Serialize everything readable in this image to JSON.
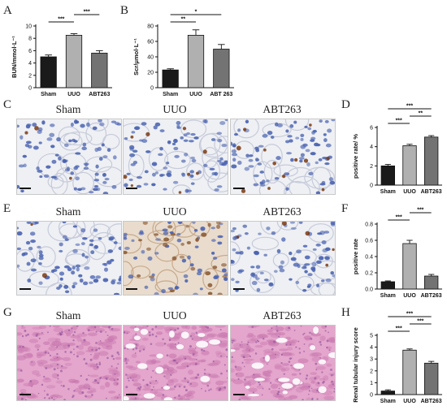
{
  "panels": {
    "A": {
      "label": "A"
    },
    "B": {
      "label": "B"
    },
    "C": {
      "label": "C",
      "titles": [
        "Sham",
        "UUO",
        "ABT263"
      ]
    },
    "D": {
      "label": "D"
    },
    "E": {
      "label": "E",
      "titles": [
        "Sham",
        "UUO",
        "ABT263"
      ]
    },
    "F": {
      "label": "F"
    },
    "G": {
      "label": "G",
      "titles": [
        "Sham",
        "UUO",
        "ABT263"
      ]
    },
    "H": {
      "label": "H"
    }
  },
  "chart_data": [
    {
      "id": "A",
      "type": "bar",
      "categories": [
        "Sham",
        "UUO",
        "ABT263"
      ],
      "values": [
        5.0,
        8.5,
        5.6
      ],
      "errors": [
        0.3,
        0.25,
        0.4
      ],
      "ylabel": "BUN/mmol·L⁻¹",
      "ylim": [
        0,
        10
      ],
      "yticks": [
        "0",
        "2",
        "4",
        "6",
        "8",
        "10"
      ],
      "bar_colors": [
        "#1a1a1a",
        "#b0b0b0",
        "#737373"
      ],
      "significance": [
        {
          "from": 0,
          "to": 1,
          "label": "***"
        },
        {
          "from": 1,
          "to": 2,
          "label": "***"
        }
      ]
    },
    {
      "id": "B",
      "type": "bar",
      "categories": [
        "Sham",
        "UUO",
        "ABT 263"
      ],
      "values": [
        23,
        68,
        50
      ],
      "errors": [
        1.5,
        7,
        6
      ],
      "ylabel": "Scr/μmol·L⁻¹",
      "ylim": [
        0,
        80
      ],
      "yticks": [
        "0",
        "20",
        "40",
        "60",
        "80"
      ],
      "bar_colors": [
        "#1a1a1a",
        "#b0b0b0",
        "#737373"
      ],
      "significance": [
        {
          "from": 0,
          "to": 1,
          "label": "**"
        },
        {
          "from": 0,
          "to": 2,
          "label": "*"
        }
      ]
    },
    {
      "id": "D",
      "type": "bar",
      "categories": [
        "Sham",
        "UUO",
        "ABT263"
      ],
      "values": [
        2.0,
        4.1,
        5.0
      ],
      "errors": [
        0.15,
        0.15,
        0.15
      ],
      "ylabel": "positive rate/ %",
      "ylim": [
        0,
        6
      ],
      "yticks": [
        "0",
        "2",
        "4",
        "6"
      ],
      "bar_colors": [
        "#1a1a1a",
        "#b0b0b0",
        "#737373"
      ],
      "significance": [
        {
          "from": 0,
          "to": 1,
          "label": "***"
        },
        {
          "from": 1,
          "to": 2,
          "label": "**"
        },
        {
          "from": 0,
          "to": 2,
          "label": "***"
        }
      ]
    },
    {
      "id": "F",
      "type": "bar",
      "categories": [
        "Sham",
        "UUO",
        "ABT263"
      ],
      "values": [
        0.09,
        0.56,
        0.16
      ],
      "errors": [
        0.01,
        0.04,
        0.02
      ],
      "ylabel": "positive rate",
      "ylim": [
        0,
        0.8
      ],
      "yticks": [
        "0.0",
        "0.2",
        "0.4",
        "0.6",
        "0.8"
      ],
      "bar_colors": [
        "#1a1a1a",
        "#b0b0b0",
        "#737373"
      ],
      "significance": [
        {
          "from": 0,
          "to": 1,
          "label": "***"
        },
        {
          "from": 1,
          "to": 2,
          "label": "***"
        }
      ]
    },
    {
      "id": "H",
      "type": "bar",
      "categories": [
        "Sham",
        "UUO",
        "ABT263"
      ],
      "values": [
        0.3,
        3.75,
        2.65
      ],
      "errors": [
        0.1,
        0.1,
        0.15
      ],
      "ylabel": "Renal tubular injury score",
      "ylim": [
        0,
        5
      ],
      "yticks": [
        "0",
        "1",
        "2",
        "3",
        "4",
        "5"
      ],
      "bar_colors": [
        "#1a1a1a",
        "#b0b0b0",
        "#737373"
      ],
      "significance": [
        {
          "from": 0,
          "to": 1,
          "label": "***"
        },
        {
          "from": 1,
          "to": 2,
          "label": "***"
        },
        {
          "from": 0,
          "to": 2,
          "label": "***"
        }
      ]
    }
  ],
  "colors": {
    "ihc_background": "#eef0f4",
    "hematoxylin": "#4a63b0",
    "dab_brown": "#7a3a12",
    "he_pink": "#e4a6cc"
  }
}
